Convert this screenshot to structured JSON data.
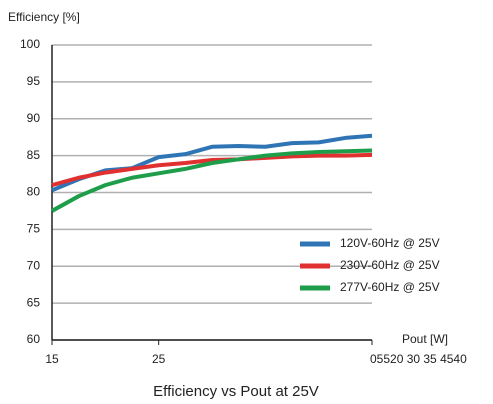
{
  "chart_data": {
    "type": "line",
    "title": "Efficiency vs Pout at 25V",
    "ylabel": "Efficiency [%]",
    "xlabel": "Pout [W]",
    "x": [
      15,
      17.5,
      20,
      22.5,
      25,
      27.5,
      30,
      32.5,
      35,
      37.5,
      40,
      42.5,
      45
    ],
    "series": [
      {
        "name": "120V-60Hz @ 25V",
        "color": "#2f75b5",
        "values": [
          80.3,
          81.8,
          83,
          83.3,
          84.8,
          85.2,
          86.2,
          86.3,
          86.2,
          86.7,
          86.8,
          87.4,
          87.7
        ]
      },
      {
        "name": "230V-60Hz @ 25V",
        "color": "#e03030",
        "values": [
          81,
          82,
          82.7,
          83.2,
          83.7,
          84,
          84.4,
          84.5,
          84.7,
          84.9,
          85,
          85,
          85.1
        ]
      },
      {
        "name": "277V-60Hz @ 25V",
        "color": "#1e9e4a",
        "values": [
          77.5,
          79.5,
          81,
          82,
          82.6,
          83.2,
          84,
          84.5,
          85,
          85.3,
          85.5,
          85.6,
          85.7
        ]
      }
    ],
    "xlim": [
      15,
      45
    ],
    "xticks": [
      15,
      25,
      {
        "value": 45,
        "label": "05520 30 35 4540"
      }
    ],
    "ylim": [
      60,
      100
    ],
    "yticks": [
      60,
      65,
      70,
      75,
      80,
      85,
      90,
      95,
      100
    ],
    "grid": true,
    "legend": "lower right"
  }
}
